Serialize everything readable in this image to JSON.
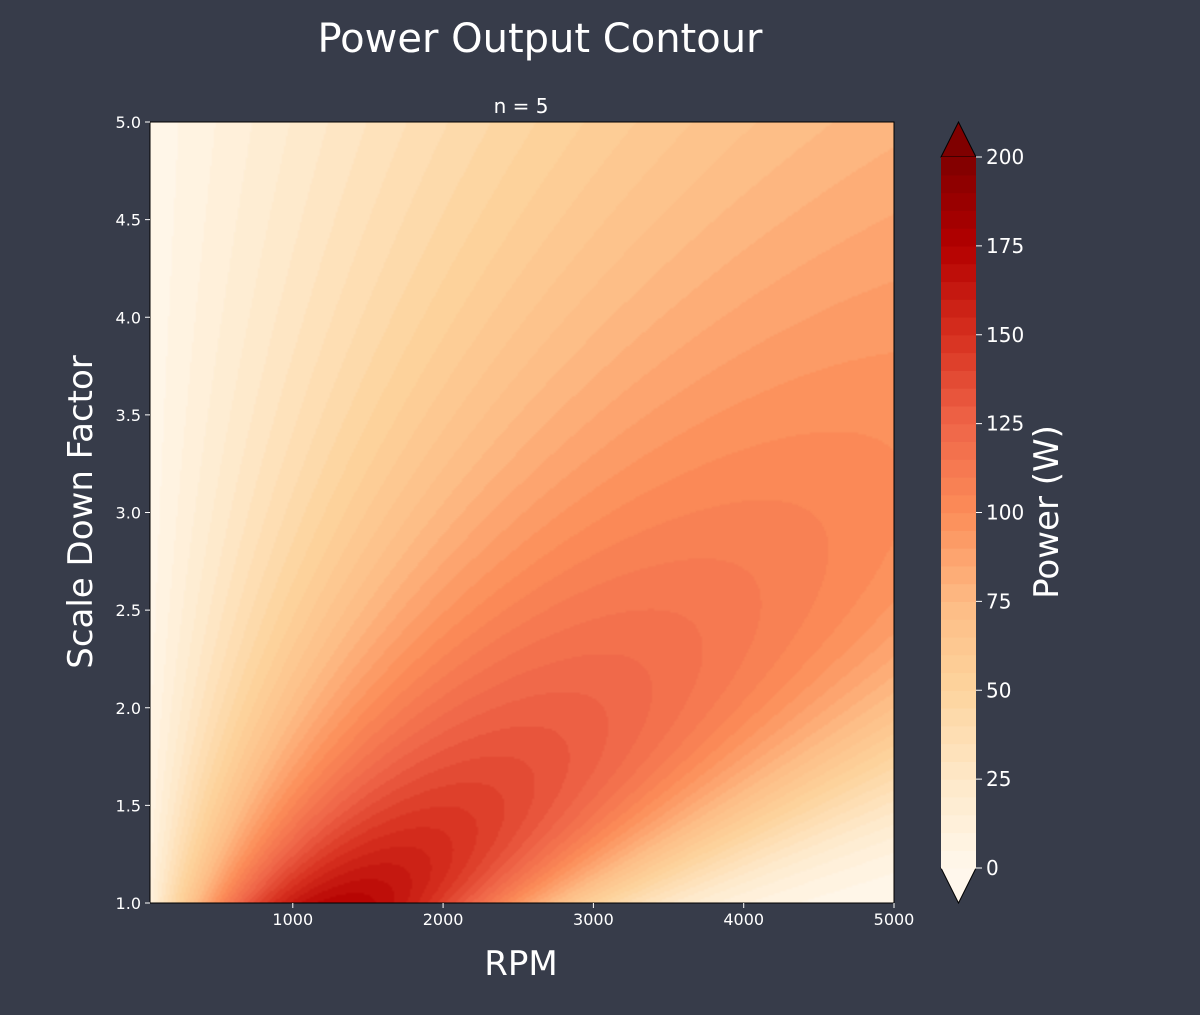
{
  "chart_data": {
    "type": "heatmap",
    "subtype": "filled-contour",
    "title": "Power Output Contour",
    "subtitle": "n = 5",
    "xlabel": "RPM",
    "ylabel": "Scale Down Factor",
    "xlim": [
      50,
      5000
    ],
    "ylim": [
      1.0,
      5.0
    ],
    "x_ticks": [
      "1000",
      "2000",
      "3000",
      "4000",
      "5000"
    ],
    "y_ticks": [
      "1.0",
      "1.5",
      "2.0",
      "2.5",
      "3.0",
      "3.5",
      "4.0",
      "4.5",
      "5.0"
    ],
    "colormap": "OrRd",
    "colorbar": {
      "label": "Power (W)",
      "range": [
        0,
        200
      ],
      "ticks": [
        "0",
        "25",
        "50",
        "75",
        "100",
        "125",
        "150",
        "175",
        "200"
      ],
      "extend": "both",
      "levels": 40
    },
    "peak": {
      "rpm": 1350,
      "scale": 1.05,
      "power": 170
    },
    "contour_samples": [
      {
        "rpm": 1300,
        "scale": 1.05,
        "power": 170
      },
      {
        "rpm": 1500,
        "scale": 1.25,
        "power": 160
      },
      {
        "rpm": 1600,
        "scale": 1.5,
        "power": 155
      },
      {
        "rpm": 1900,
        "scale": 2.0,
        "power": 140
      },
      {
        "rpm": 2300,
        "scale": 2.5,
        "power": 130
      },
      {
        "rpm": 2700,
        "scale": 3.0,
        "power": 115
      },
      {
        "rpm": 3200,
        "scale": 3.5,
        "power": 105
      },
      {
        "rpm": 3600,
        "scale": 4.0,
        "power": 95
      },
      {
        "rpm": 4200,
        "scale": 4.5,
        "power": 88
      },
      {
        "rpm": 4800,
        "scale": 5.0,
        "power": 85
      },
      {
        "rpm": 4500,
        "scale": 1.5,
        "power": 0
      },
      {
        "rpm": 200,
        "scale": 4.5,
        "power": 5
      }
    ],
    "grid": false,
    "background": "#373c4a"
  }
}
